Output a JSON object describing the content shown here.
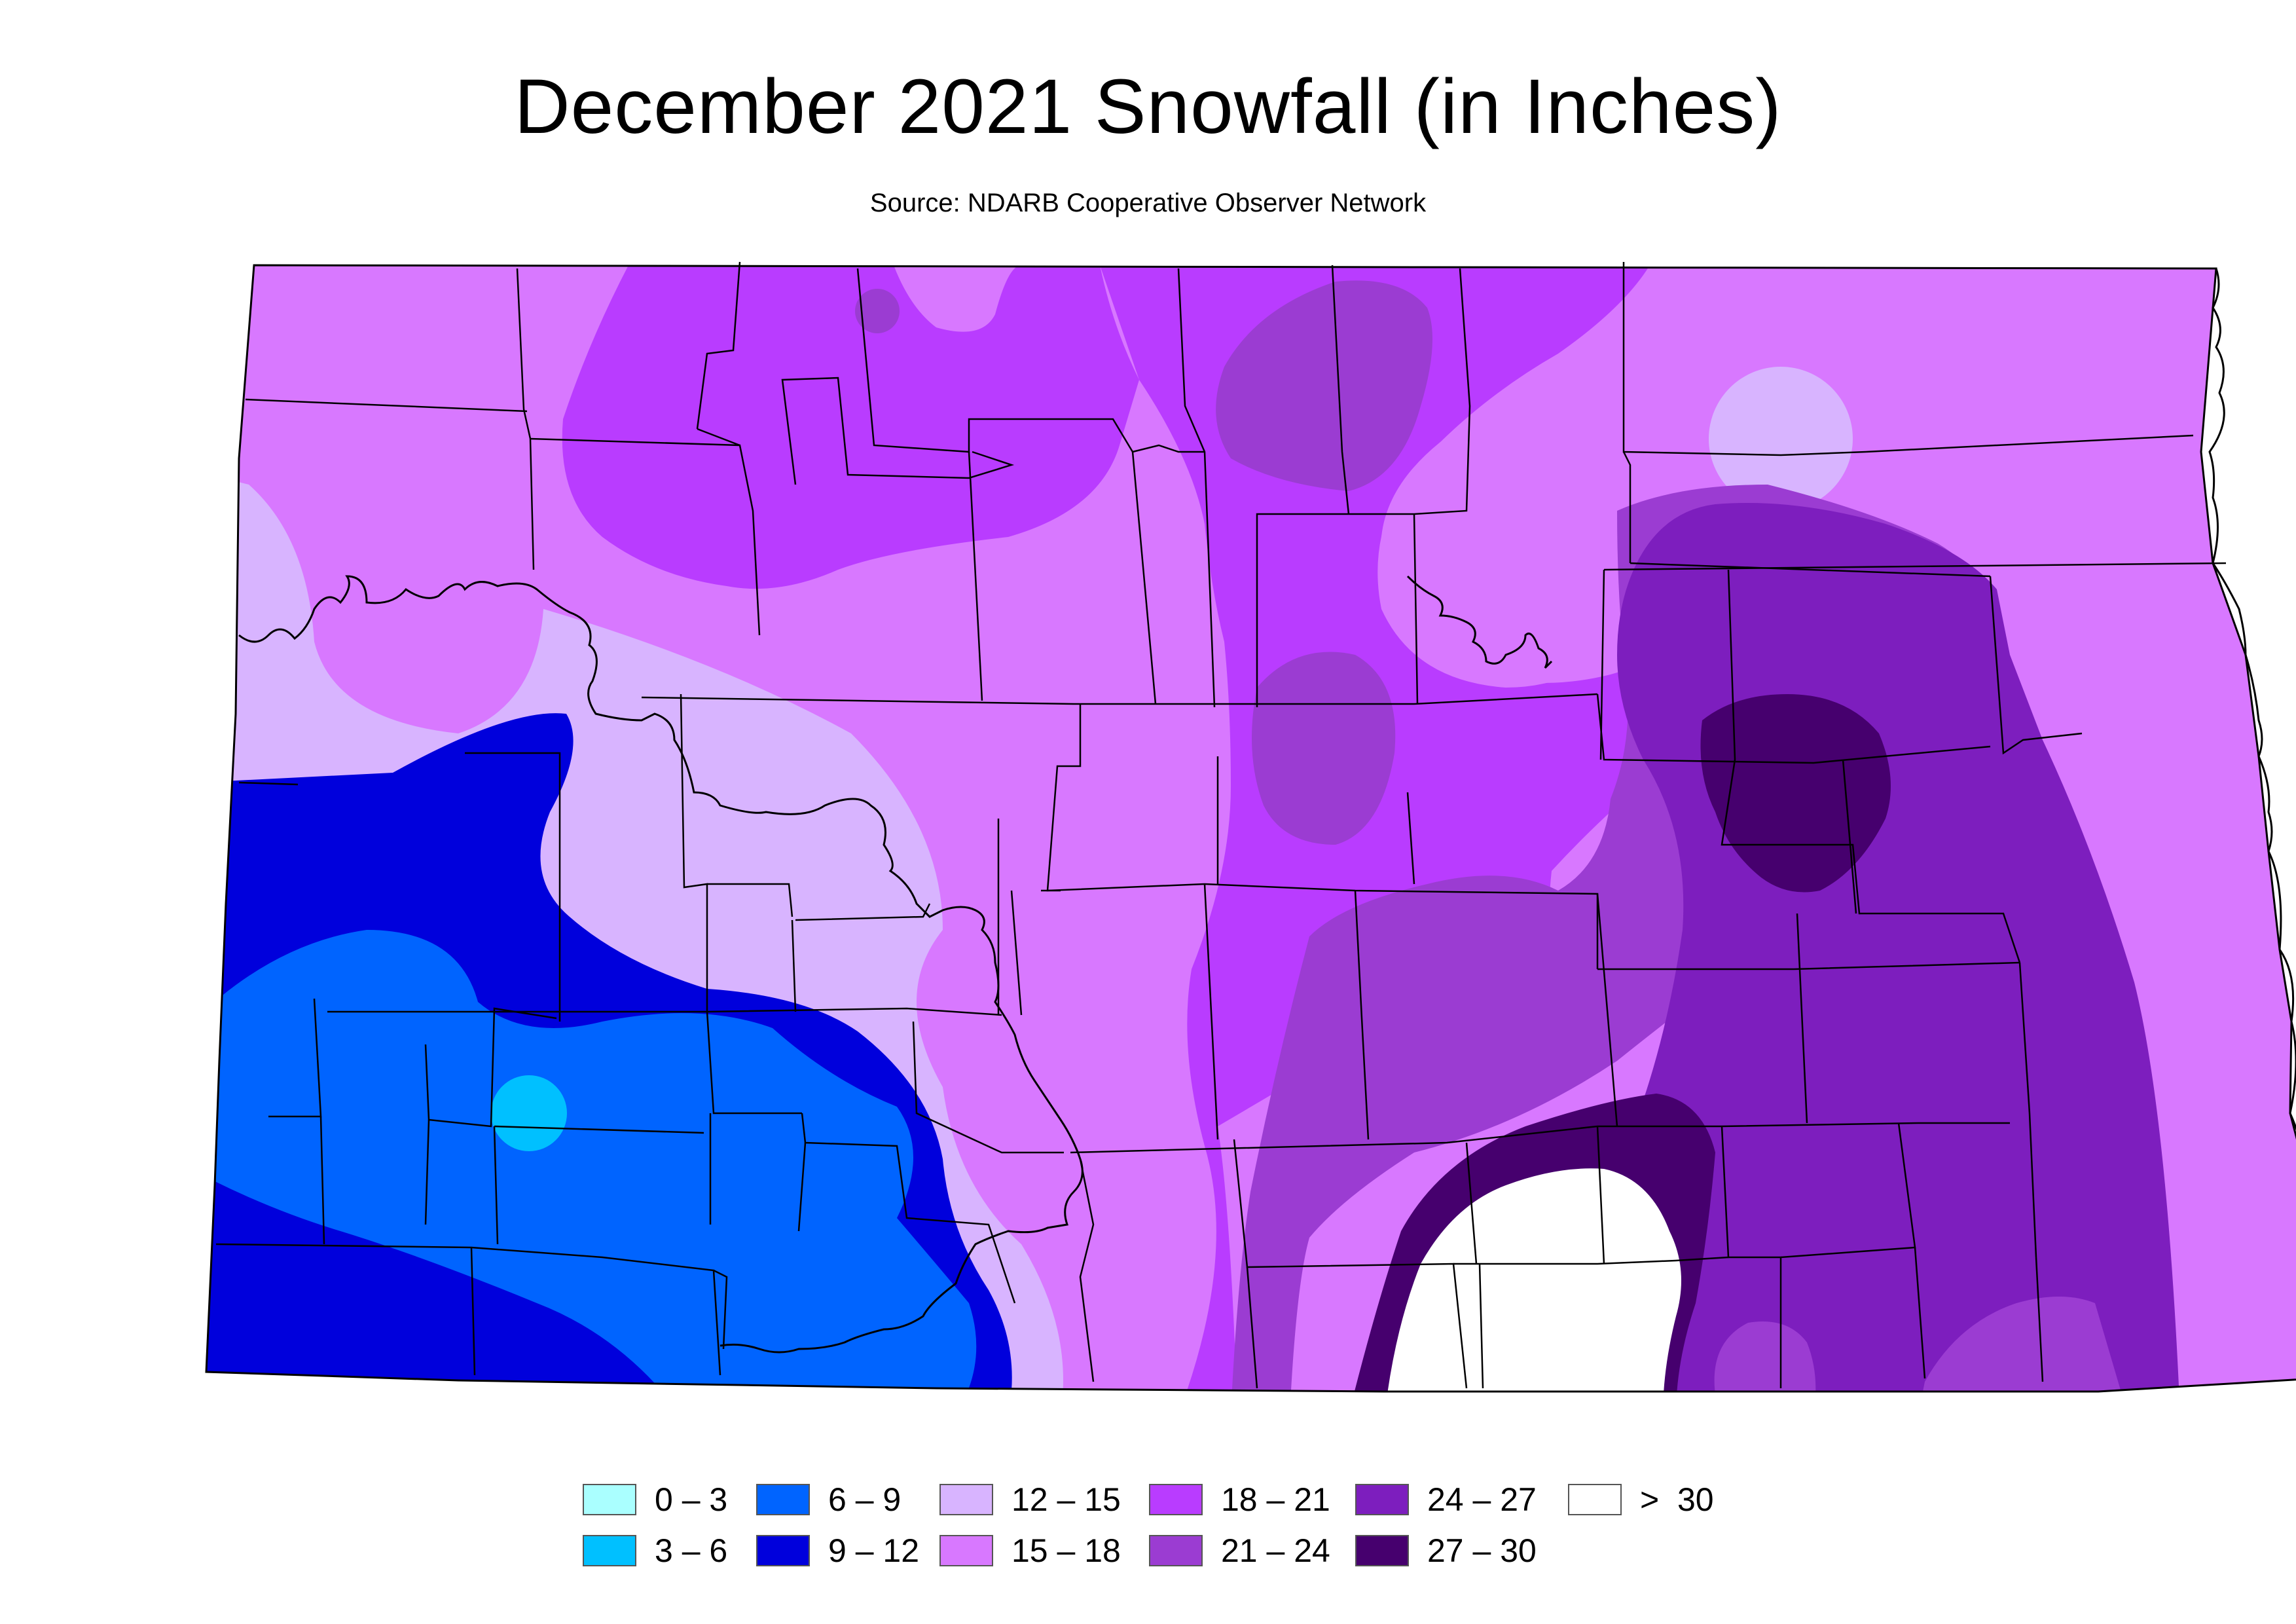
{
  "title": "December 2021 Snowfall (in Inches)",
  "subtitle": "Source: NDARB Cooperative Observer Network",
  "legend": [
    {
      "label": "0 – 3",
      "color": "#aaffff"
    },
    {
      "label": "3 – 6",
      "color": "#00c0ff"
    },
    {
      "label": "6 – 9",
      "color": "#0064ff"
    },
    {
      "label": "9 – 12",
      "color": "#0000dc"
    },
    {
      "label": "12 – 15",
      "color": "#d8b4ff"
    },
    {
      "label": "15 – 18",
      "color": "#d878ff"
    },
    {
      "label": "18 – 21",
      "color": "#b93cff"
    },
    {
      "label": "21 – 24",
      "color": "#9b3cd2"
    },
    {
      "label": "24 – 27",
      "color": "#7d1ebe"
    },
    {
      "label": "27 – 30",
      "color": "#46006e"
    },
    {
      "label": ">  30",
      "color": "#ffffff"
    }
  ]
}
